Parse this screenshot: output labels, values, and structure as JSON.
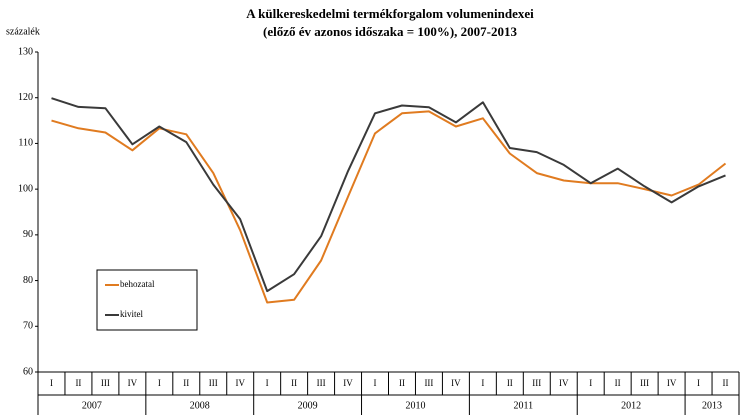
{
  "chart_data": {
    "type": "line",
    "title": "A külkereskedelmi termékforgalom volumenindexei",
    "subtitle": "(előző év azonos időszaka = 100%), 2007-2013",
    "y_label": "százalék",
    "categories": [
      "I",
      "II",
      "III",
      "IV",
      "I",
      "II",
      "III",
      "IV",
      "I",
      "II",
      "III",
      "IV",
      "I",
      "II",
      "III",
      "IV",
      "I",
      "II",
      "III",
      "IV",
      "I",
      "II",
      "III",
      "IV",
      "I",
      "II"
    ],
    "years": [
      "2007",
      "2008",
      "2009",
      "2010",
      "2011",
      "2012",
      "2013"
    ],
    "series": [
      {
        "name": "behozatal",
        "color": "#e07b20",
        "values": [
          115,
          113.3,
          112.4,
          108.5,
          113.3,
          112,
          103.5,
          91,
          75.2,
          75.8,
          84.4,
          98.4,
          112.2,
          116.6,
          117,
          113.7,
          115.5,
          107.8,
          103.5,
          101.9,
          101.3,
          101.3,
          100,
          98.6,
          101,
          105.6
        ]
      },
      {
        "name": "kivitel",
        "color": "#3a3a3a",
        "values": [
          119.9,
          118,
          117.7,
          109.8,
          113.7,
          110.3,
          101,
          93.4,
          77.7,
          81.4,
          89.7,
          104,
          116.6,
          118.3,
          117.9,
          114.6,
          119,
          109,
          108.1,
          105.3,
          101.3,
          104.5,
          100.6,
          97.1,
          100.6,
          103
        ]
      }
    ],
    "ylim": [
      60,
      130
    ],
    "yticks": [
      60,
      70,
      80,
      90,
      100,
      110,
      120,
      130
    ],
    "grid": false,
    "legend": "lower left"
  }
}
